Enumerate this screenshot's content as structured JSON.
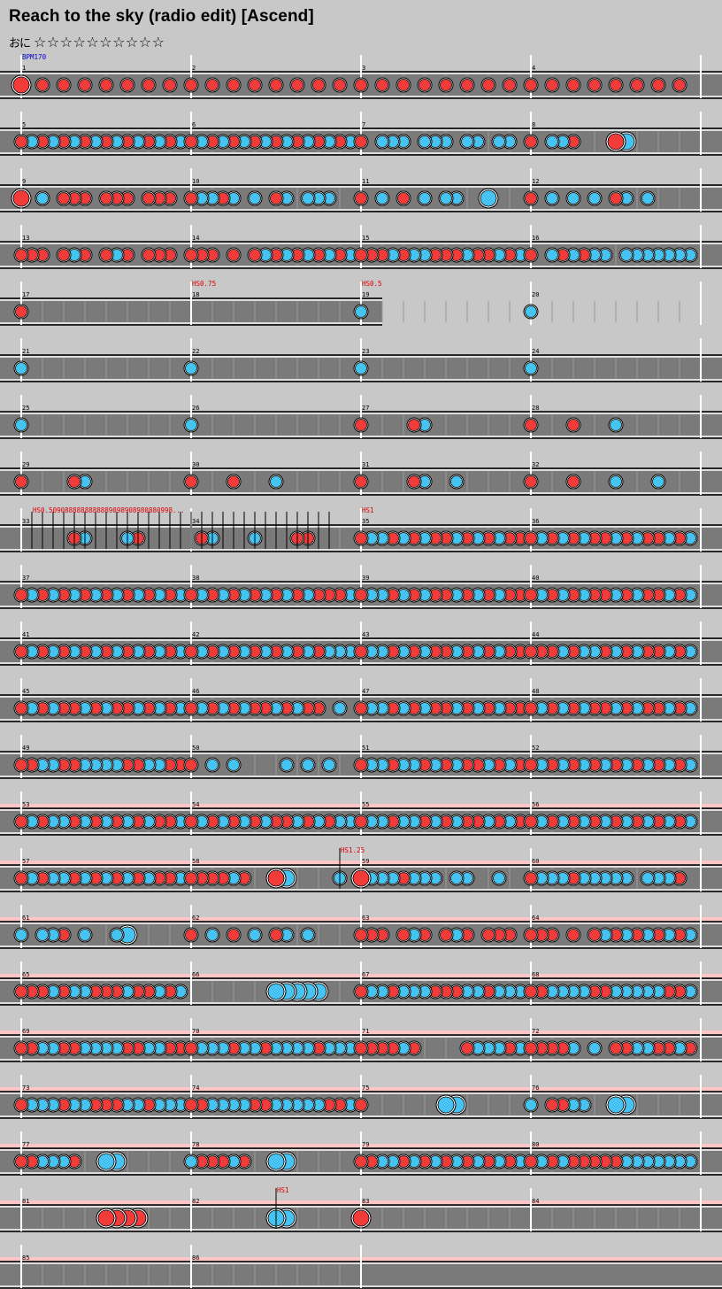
{
  "song": {
    "title": "Reach to the sky (radio edit) [Ascend]",
    "level_label": "おに",
    "stars": "☆☆☆☆☆☆☆☆☆☆"
  },
  "colors": {
    "don": "#f23c3c",
    "ka": "#46c3f0",
    "lane": "#7a7a7a",
    "gogo_band": "#ffc6c6",
    "background": "#c8c8c8",
    "event_text": "#dd0000",
    "bpm_text": "#0000cc"
  },
  "chart_data": {
    "type": "taiko-chart",
    "measures_per_row": 4,
    "gogo_rows_from": 13,
    "gogo_rows_to": 21,
    "events": [
      {
        "measure": 1,
        "label": "BPM170",
        "kind": "bpm"
      },
      {
        "measure": 18,
        "label": "HS0.75",
        "kind": "hs"
      },
      {
        "measure": 19,
        "label": "HS0.5",
        "kind": "hs"
      },
      {
        "measure": 33,
        "label": "HS0.5090888888888889098908980880998...",
        "kind": "hs",
        "series": true
      },
      {
        "measure": 35,
        "label": "HS1",
        "kind": "hs"
      },
      {
        "measure": 58,
        "label": "HS1.25",
        "kind": "hs"
      },
      {
        "measure": 82,
        "label": "HS1",
        "kind": "hs"
      }
    ],
    "measures": [
      {
        "n": 1,
        "notes": "3010101010101010"
      },
      {
        "n": 2,
        "notes": "1010101010101010"
      },
      {
        "n": 3,
        "notes": "1010101010101010"
      },
      {
        "n": 4,
        "notes": "1010101010101010"
      },
      {
        "n": 5,
        "notes": "1212121212121212"
      },
      {
        "n": 6,
        "notes": "1212121212121212"
      },
      {
        "n": 7,
        "notes": "1022202220220220"
      },
      {
        "n": 8,
        "notes": "1022100000000000",
        "big": "34"
      },
      {
        "n": 9,
        "notes": "3020111011101110"
      },
      {
        "n": 10,
        "notes": "1221202012022200"
      },
      {
        "n": 11,
        "notes": "1020102022004000"
      },
      {
        "n": 12,
        "notes": "1020202012020000"
      },
      {
        "n": 13,
        "notes": "1110121012101110"
      },
      {
        "n": 14,
        "notes": "1110101212121212"
      },
      {
        "n": 15,
        "notes": "1112122111211212"
      },
      {
        "n": 16,
        "notes": "1021212202222222"
      },
      {
        "n": 17,
        "notes": "1000000000000000",
        "short": true
      },
      {
        "n": 18,
        "notes": "0000000000000000",
        "short": true
      },
      {
        "n": 19,
        "notes": "2000000000000000"
      },
      {
        "n": 20,
        "notes": "2000000000000000"
      },
      {
        "n": 21,
        "notes": "2000000000000000"
      },
      {
        "n": 22,
        "notes": "2000000000000000"
      },
      {
        "n": 23,
        "notes": "2000000000000000"
      },
      {
        "n": 24,
        "notes": "2000000000000000"
      },
      {
        "n": 25,
        "notes": "2000000000000000"
      },
      {
        "n": 26,
        "notes": "2000000000000000"
      },
      {
        "n": 27,
        "notes": "1000012000000000"
      },
      {
        "n": 28,
        "notes": "1000100020000000"
      },
      {
        "n": 29,
        "notes": "1000012000000000"
      },
      {
        "n": 30,
        "notes": "1000100020000000"
      },
      {
        "n": 31,
        "notes": "1000012002000000"
      },
      {
        "n": 32,
        "notes": "1000100020002000"
      },
      {
        "n": 33,
        "notes": "0000012000210000"
      },
      {
        "n": 34,
        "notes": "0120002000110000"
      },
      {
        "n": 35,
        "notes": "1221212112121211"
      },
      {
        "n": 36,
        "notes": "1212121121211212"
      },
      {
        "n": 37,
        "notes": "1212121212121212"
      },
      {
        "n": 38,
        "notes": "1212121212121112"
      },
      {
        "n": 39,
        "notes": "1221212112121211"
      },
      {
        "n": 40,
        "notes": "1212121121211212"
      },
      {
        "n": 41,
        "notes": "1212121212121212"
      },
      {
        "n": 42,
        "notes": "1212121212121222"
      },
      {
        "n": 43,
        "notes": "1221212112121211"
      },
      {
        "n": 44,
        "notes": "1112122121211212"
      },
      {
        "n": 45,
        "notes": "1212112121121212"
      },
      {
        "n": 46,
        "notes": "1212121121211020"
      },
      {
        "n": 47,
        "notes": "1221212112121211"
      },
      {
        "n": 48,
        "notes": "1212121121211212"
      },
      {
        "n": 49,
        "notes": "1122112222112211"
      },
      {
        "n": 50,
        "notes": "1020200002020200"
      },
      {
        "n": 51,
        "notes": "1221221212112121"
      },
      {
        "n": 52,
        "notes": "1212121212121212"
      },
      {
        "n": 53,
        "notes": "1212212121212112"
      },
      {
        "n": 54,
        "notes": "1212121211212122"
      },
      {
        "n": 55,
        "notes": "1221221212112121"
      },
      {
        "n": 56,
        "notes": "1212121212121212"
      },
      {
        "n": 57,
        "notes": "1212212121212112"
      },
      {
        "n": 58,
        "notes": "1111210000000000",
        "big": "34",
        "tail": "2"
      },
      {
        "n": 59,
        "notes": "3222122202200200"
      },
      {
        "n": 60,
        "notes": "1222122222022210"
      },
      {
        "n": 61,
        "notes": "2022102002400000"
      },
      {
        "n": 62,
        "notes": "1020102012020000"
      },
      {
        "n": 63,
        "notes": "1110121012101110"
      },
      {
        "n": 64,
        "notes": "1110101212121212"
      },
      {
        "n": 65,
        "notes": "1112122111211212"
      },
      {
        "n": 66,
        "notes": "0000000000000000",
        "big": "44144"
      },
      {
        "n": 67,
        "notes": "1221222111221222"
      },
      {
        "n": 68,
        "notes": "1122221122222112"
      },
      {
        "n": 69,
        "notes": "1122112222112211"
      },
      {
        "n": 70,
        "notes": "1222122122221222"
      },
      {
        "n": 71,
        "notes": "1111210000122212"
      },
      {
        "n": 72,
        "notes": "1111202011221121"
      },
      {
        "n": 73,
        "notes": "1222122111221222"
      },
      {
        "n": 74,
        "notes": "1122221122222112"
      },
      {
        "n": 75,
        "notes": "1000000000000000",
        "big": "44"
      },
      {
        "n": 76,
        "notes": "2011220000000000",
        "big": "44"
      },
      {
        "n": 77,
        "notes": "1122210000000000",
        "big": "44"
      },
      {
        "n": 78,
        "notes": "2111210000000000",
        "big": "44"
      },
      {
        "n": 79,
        "notes": "1122121212121212"
      },
      {
        "n": 80,
        "notes": "1212111112222222"
      },
      {
        "n": 81,
        "notes": "0000000000000000",
        "big": "3333"
      },
      {
        "n": 82,
        "notes": "0000000000000000",
        "big": "44"
      },
      {
        "n": 83,
        "notes": "3000000000000000"
      },
      {
        "n": 84,
        "notes": "0000000000000000"
      },
      {
        "n": 85,
        "notes": "0000000000000000"
      },
      {
        "n": 86,
        "notes": "0000000000000000"
      }
    ]
  }
}
